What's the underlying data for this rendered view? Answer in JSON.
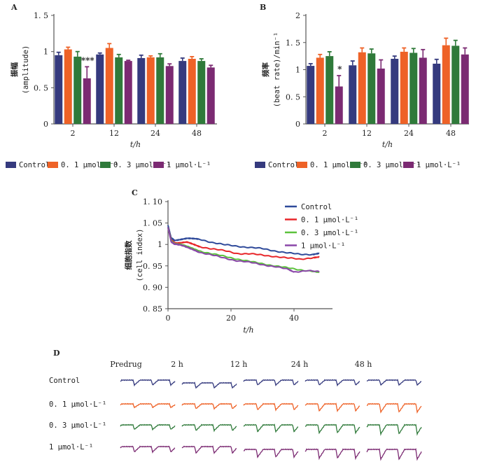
{
  "colors": {
    "Control": "#353a7e",
    "0.1": "#ee6227",
    "0.3": "#2f7a3a",
    "1": "#7b2a72",
    "line_Control": "#2f4a9a",
    "line_0.1": "#e8262a",
    "line_0.3": "#5cc23c",
    "line_1": "#8a47a8"
  },
  "legend_labels": [
    "Control",
    "0. 1 μmol·L⁻¹",
    "0. 3 μmol·L⁻¹",
    "1 μmol·L⁻¹"
  ],
  "chart_data": [
    {
      "panel": "A",
      "type": "bar",
      "ylabel_cn": "振幅",
      "ylabel_en": "(amplitude)",
      "xlabel": "t/h",
      "categories": [
        "2",
        "12",
        "24",
        "48"
      ],
      "ylim": [
        0,
        1.5
      ],
      "yticks": [
        "0",
        "0. 5",
        "1",
        "1. 5"
      ],
      "ytick_values": [
        0,
        0.5,
        1,
        1.5
      ],
      "series": [
        {
          "name": "Control",
          "values": [
            0.95,
            0.96,
            0.91,
            0.87
          ],
          "errors": [
            0.04,
            0.02,
            0.04,
            0.04
          ]
        },
        {
          "name": "0.1 μmol·L⁻¹",
          "values": [
            1.03,
            1.05,
            0.92,
            0.9
          ],
          "errors": [
            0.03,
            0.06,
            0.02,
            0.03
          ]
        },
        {
          "name": "0.3 μmol·L⁻¹",
          "values": [
            0.93,
            0.92,
            0.92,
            0.87
          ],
          "errors": [
            0.07,
            0.04,
            0.05,
            0.03
          ]
        },
        {
          "name": "1 μmol·L⁻¹",
          "values": [
            0.63,
            0.87,
            0.8,
            0.78
          ],
          "errors": [
            0.16,
            0.01,
            0.03,
            0.03
          ]
        }
      ],
      "annotations": [
        {
          "category": "2",
          "series": "1 μmol·L⁻¹",
          "text": "***"
        }
      ],
      "legend": "bottom"
    },
    {
      "panel": "B",
      "type": "bar",
      "ylabel_cn": "频率",
      "ylabel_en": "(beat rate)/min⁻¹",
      "xlabel": "t/h",
      "categories": [
        "2",
        "12",
        "24",
        "48"
      ],
      "ylim": [
        0,
        2
      ],
      "yticks": [
        "0",
        "0. 5",
        "1",
        "1. 5",
        "2"
      ],
      "ytick_values": [
        0,
        0.5,
        1,
        1.5,
        2
      ],
      "series": [
        {
          "name": "Control",
          "values": [
            1.07,
            1.08,
            1.2,
            1.11
          ],
          "errors": [
            0.04,
            0.08,
            0.05,
            0.08
          ]
        },
        {
          "name": "0.1 μmol·L⁻¹",
          "values": [
            1.22,
            1.32,
            1.33,
            1.45
          ],
          "errors": [
            0.06,
            0.08,
            0.07,
            0.13
          ]
        },
        {
          "name": "0.3 μmol·L⁻¹",
          "values": [
            1.25,
            1.3,
            1.31,
            1.44
          ],
          "errors": [
            0.08,
            0.08,
            0.08,
            0.1
          ]
        },
        {
          "name": "1 μmol·L⁻¹",
          "values": [
            0.69,
            1.02,
            1.22,
            1.28
          ],
          "errors": [
            0.2,
            0.16,
            0.15,
            0.12
          ]
        }
      ],
      "annotations": [
        {
          "category": "2",
          "series": "1 μmol·L⁻¹",
          "text": "*"
        }
      ],
      "legend": "bottom"
    },
    {
      "panel": "C",
      "type": "line",
      "ylabel_cn": "细胞指数",
      "ylabel_en": "(cell index)",
      "xlabel": "t/h",
      "xlim": [
        0,
        48
      ],
      "ylim": [
        0.85,
        1.1
      ],
      "xticks": [
        "0",
        "20",
        "40"
      ],
      "xtick_values": [
        0,
        20,
        40
      ],
      "yticks": [
        "0. 85",
        "0. 90",
        "0. 95",
        "1",
        "1. 05",
        "1. 10"
      ],
      "ytick_values": [
        0.85,
        0.9,
        0.95,
        1.0,
        1.05,
        1.1
      ],
      "legend": "top-right",
      "series": [
        {
          "name": "Control",
          "x": [
            0,
            1,
            2,
            4,
            6,
            8,
            10,
            14,
            18,
            22,
            26,
            30,
            34,
            38,
            42,
            46,
            48
          ],
          "y": [
            1.045,
            1.015,
            1.01,
            1.012,
            1.014,
            1.013,
            1.012,
            1.005,
            0.999,
            0.996,
            0.993,
            0.99,
            0.985,
            0.98,
            0.977,
            0.977,
            0.979
          ]
        },
        {
          "name": "0.1 μmol·L⁻¹",
          "x": [
            0,
            1,
            2,
            4,
            6,
            8,
            10,
            14,
            18,
            22,
            26,
            30,
            34,
            38,
            42,
            46,
            48
          ],
          "y": [
            1.04,
            1.01,
            1.004,
            1.004,
            1.005,
            1.0,
            0.995,
            0.99,
            0.985,
            0.979,
            0.978,
            0.975,
            0.972,
            0.968,
            0.966,
            0.969,
            0.97
          ]
        },
        {
          "name": "0.3 μmol·L⁻¹",
          "x": [
            0,
            1,
            2,
            4,
            6,
            8,
            10,
            14,
            18,
            22,
            26,
            30,
            34,
            38,
            42,
            46,
            48
          ],
          "y": [
            1.04,
            1.008,
            1.002,
            1.0,
            0.995,
            0.99,
            0.985,
            0.978,
            0.972,
            0.966,
            0.96,
            0.955,
            0.95,
            0.945,
            0.941,
            0.937,
            0.934
          ]
        },
        {
          "name": "1 μmol·L⁻¹",
          "x": [
            0,
            1,
            2,
            4,
            6,
            8,
            10,
            14,
            18,
            22,
            26,
            30,
            34,
            38,
            40,
            44,
            48
          ],
          "y": [
            1.04,
            1.006,
            1.001,
            0.998,
            0.993,
            0.988,
            0.982,
            0.975,
            0.968,
            0.962,
            0.958,
            0.953,
            0.948,
            0.942,
            0.936,
            0.939,
            0.936
          ]
        }
      ]
    }
  ],
  "panel_D": {
    "label": "D",
    "columns": [
      "Predrug",
      "2 h",
      "12 h",
      "24 h",
      "48 h"
    ],
    "rows": [
      "Control",
      "0. 1 μmol·L⁻¹",
      "0. 3 μmol·L⁻¹",
      "1 μmol·L⁻¹"
    ],
    "row_series_keys": [
      "Control",
      "0.1",
      "0.3",
      "1"
    ]
  },
  "panel_labels": {
    "A": "A",
    "B": "B",
    "C": "C"
  }
}
